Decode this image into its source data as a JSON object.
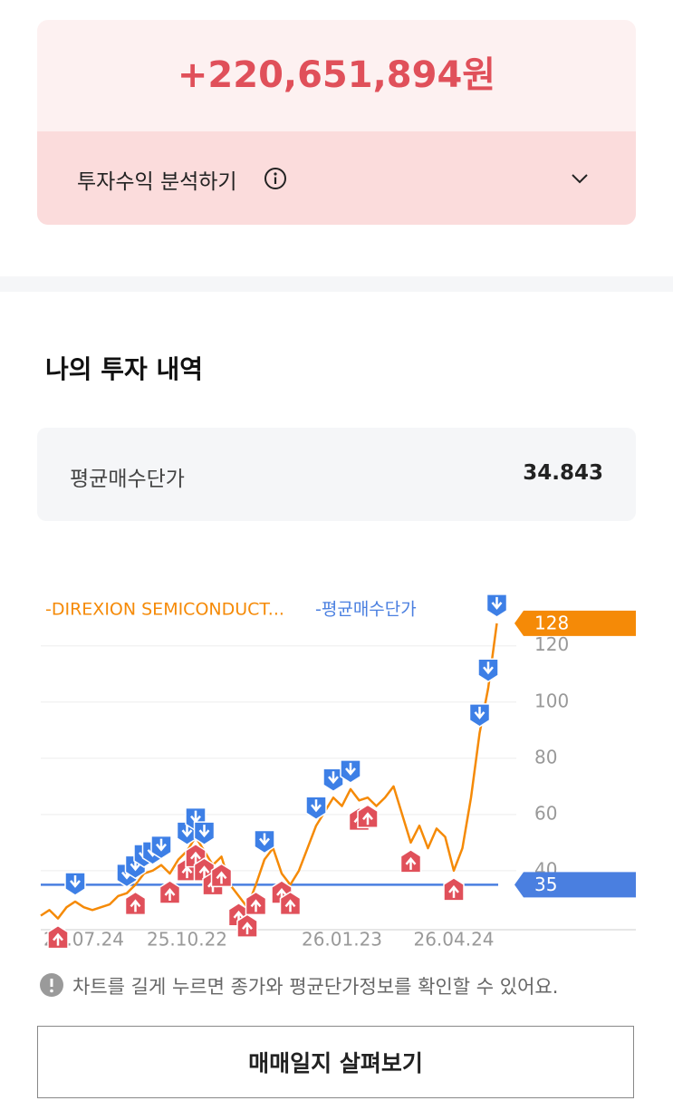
{
  "profit": {
    "amount": "+220,651,894원",
    "analysis_button": "투자수익 분석하기"
  },
  "history": {
    "title": "나의 투자 내역",
    "avg_price_label": "평균매수단가",
    "avg_price_value": "34.843"
  },
  "chart_data": {
    "type": "line",
    "categories": [
      null,
      null,
      null,
      null,
      null,
      "25.07.24",
      null,
      null,
      null,
      null,
      null,
      null,
      null,
      null,
      null,
      null,
      null,
      "25.10.22",
      null,
      null,
      null,
      null,
      null,
      null,
      null,
      null,
      null,
      null,
      null,
      null,
      null,
      null,
      null,
      null,
      null,
      "26.01.23",
      null,
      null,
      null,
      null,
      null,
      null,
      null,
      null,
      null,
      null,
      null,
      null,
      "26.04.24",
      null,
      null,
      null,
      null,
      null
    ],
    "series": [
      {
        "name": "-DIREXION SEMICONDUCT...",
        "color": "#f58a07",
        "values": [
          24,
          26,
          23,
          27,
          29,
          27,
          26,
          27,
          28,
          31,
          32,
          35,
          39,
          40,
          42,
          39,
          44,
          47,
          52,
          47,
          42,
          45,
          35,
          31,
          27,
          35,
          44,
          48,
          39,
          35,
          40,
          48,
          56,
          61,
          66,
          63,
          69,
          65,
          66,
          63,
          66,
          70,
          60,
          50,
          56,
          48,
          55,
          52,
          40,
          48,
          66,
          89,
          105,
          128
        ]
      }
    ],
    "avg_line": {
      "name": "-평균매수단가",
      "color": "#4a7fe0",
      "value": 35
    },
    "buy_markers": [
      4,
      10,
      11,
      12,
      13,
      14,
      17,
      18,
      19,
      26,
      32,
      34,
      36,
      51,
      52,
      53
    ],
    "sell_markers": [
      2,
      11,
      15,
      17,
      18,
      19,
      20,
      21,
      23,
      24,
      25,
      28,
      29,
      37,
      38,
      43,
      48
    ],
    "ylim": [
      19,
      137
    ],
    "yticks": [
      40,
      60,
      80,
      100,
      120
    ],
    "grid": true,
    "note": "차트를 길게 누르면 종가와 평균단가정보를 확인할 수 있어요."
  },
  "journal_button": "매매일지 살펴보기"
}
